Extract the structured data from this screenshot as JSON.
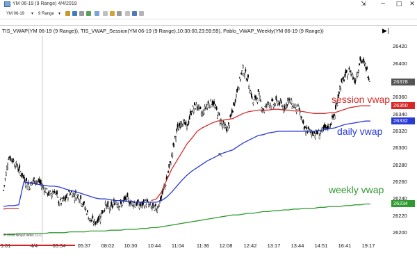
{
  "window": {
    "title": "YM 06-19 (9 Range)  4/4/2019",
    "minimize": "−",
    "maximize": "□",
    "close": "✕",
    "restore": "⇲"
  },
  "toolbar": {
    "instrument": "YM 06-19",
    "interval": "9 Range",
    "icons": [
      "bar-style-icon",
      "draw-tool-icon",
      "zoom-icon",
      "properties-icon",
      "strategies-icon",
      "chart-trader-icon"
    ]
  },
  "chart": {
    "indicators_label": "TIS_VWAP(YM 06-19 (9 Range)), TIS_VWAP_Session(YM 06-19 (9 Range),10:30:00,23:59:59), Pablo_VWAP_Weekly(YM 06-19 (9 Range))",
    "copyright": "© 2019 NinjaTrader, LLC",
    "annotations": {
      "session": "session vwap",
      "daily": "daily vwap",
      "weekly": "weekly vwap"
    },
    "colors": {
      "session": "#d62828",
      "daily": "#2a3ad6",
      "weekly": "#2f9a2f",
      "candle": "#000000",
      "flag_last": "#555555",
      "flag_session": "#d62828",
      "flag_daily": "#2a3ad6",
      "flag_weekly": "#2f9a2f"
    }
  },
  "chart_data": {
    "type": "line",
    "ylim": [
      26190,
      26430
    ],
    "price_ticks": [
      26420,
      26400,
      26380,
      26360,
      26340,
      26320,
      26300,
      26280,
      26260,
      26240,
      26220,
      26200
    ],
    "time_ticks": [
      "9:01",
      "4/4",
      "03:34",
      "05:37",
      "08:02",
      "10:30",
      "10:44",
      "11:04",
      "11:36",
      "12:08",
      "12:42",
      "13:17",
      "13:44",
      "14:51",
      "16:41",
      "19:17"
    ],
    "flags": {
      "last": "26378",
      "session": "26350",
      "daily": "26332",
      "weekly": "26234"
    },
    "series": [
      {
        "key": "close",
        "values": [
          26250,
          26290,
          26285,
          26275,
          26265,
          26255,
          26262,
          26260,
          26252,
          26245,
          26250,
          26235,
          26238,
          26248,
          26245,
          26242,
          26230,
          26215,
          26212,
          26220,
          26232,
          26228,
          26238,
          26232,
          26240,
          26236,
          26235,
          26232,
          26236,
          26230,
          26228,
          26242,
          26262,
          26290,
          26320,
          26332,
          26325,
          26346,
          26350,
          26340,
          26352,
          26355,
          26342,
          26328,
          26322,
          26345,
          26372,
          26394,
          26380,
          26354,
          26364,
          26345,
          26354,
          26352,
          26355,
          26348,
          26356,
          26350,
          26346,
          26322,
          26320,
          26318,
          26318,
          26322,
          26327,
          26340,
          26372,
          26384,
          26392,
          26380,
          26404,
          26398,
          26378
        ]
      },
      {
        "key": "session",
        "values": [
          26228,
          26229,
          26229,
          26229,
          null,
          null,
          null,
          null,
          null,
          null,
          null,
          null,
          null,
          null,
          null,
          null,
          null,
          null,
          null,
          null,
          null,
          null,
          null,
          null,
          null,
          null,
          null,
          null,
          null,
          26238,
          26240,
          26248,
          26262,
          26275,
          26285,
          26295,
          26305,
          26312,
          26320,
          26324,
          26327,
          26330,
          26332,
          26333,
          26334,
          26335,
          26338,
          26341,
          26343,
          26344,
          26345,
          26345,
          26345,
          26346,
          26346,
          26345,
          26345,
          26344,
          26344,
          26343,
          26342,
          26341,
          26341,
          26341,
          26342,
          26342,
          26344,
          26346,
          26348,
          26349,
          26350,
          26350,
          26350
        ]
      },
      {
        "key": "daily",
        "values": [
          26231,
          26232,
          26232,
          26233,
          26260,
          26259,
          26258,
          26257,
          26256,
          26255,
          26255,
          26254,
          26252,
          26250,
          26249,
          26247,
          26245,
          26243,
          26241,
          26240,
          26240,
          26239,
          26238,
          26238,
          26237,
          26237,
          26236,
          26236,
          26236,
          26236,
          26236,
          26238,
          26242,
          26248,
          26255,
          26262,
          26268,
          26273,
          26277,
          26281,
          26285,
          26288,
          26291,
          26294,
          26296,
          26298,
          26302,
          26306,
          26309,
          26312,
          26315,
          26316,
          26318,
          26319,
          26320,
          26320,
          26320,
          26320,
          26320,
          26320,
          26320,
          26320,
          26321,
          26322,
          26323,
          26324,
          26326,
          26328,
          26329,
          26330,
          26331,
          26332,
          26332
        ]
      },
      {
        "key": "weekly",
        "values": [
          26198,
          26198,
          26198,
          26199,
          26199,
          26199,
          26199,
          26199,
          26199,
          26200,
          26200,
          26200,
          26200,
          26201,
          26201,
          26201,
          26201,
          26202,
          26202,
          26202,
          26202,
          26203,
          26203,
          26203,
          26204,
          26204,
          26204,
          26205,
          26205,
          26206,
          26206,
          26207,
          26208,
          26209,
          26210,
          26211,
          26212,
          26213,
          26214,
          26215,
          26216,
          26217,
          26218,
          26219,
          26220,
          26221,
          26221,
          26222,
          26223,
          26223,
          26224,
          26225,
          26225,
          26226,
          26226,
          26227,
          26227,
          26228,
          26228,
          26229,
          26229,
          26229,
          26230,
          26230,
          26231,
          26231,
          26231,
          26232,
          26232,
          26233,
          26233,
          26234,
          26234
        ]
      }
    ]
  }
}
